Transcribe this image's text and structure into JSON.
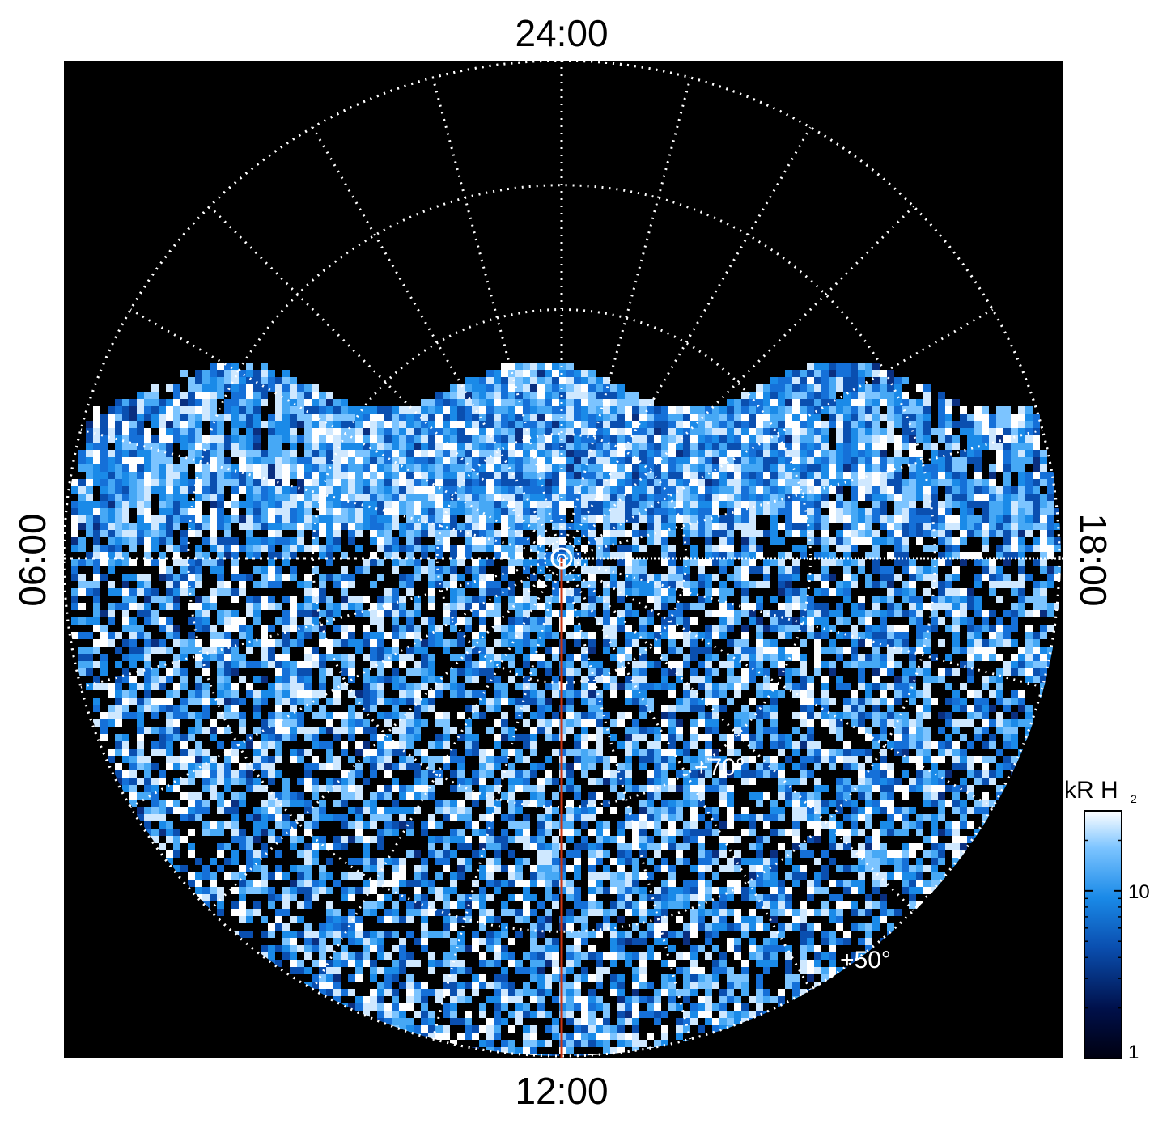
{
  "labels": {
    "top": "24:00",
    "bottom": "12:00",
    "left": "06:00",
    "right": "18:00"
  },
  "latitude_labels": {
    "inner": "+70°",
    "outer": "+50°"
  },
  "colorbar": {
    "title": "kR H",
    "title_subscript": "2",
    "ticks": [
      {
        "value": 1,
        "label": "1"
      },
      {
        "value": 10,
        "label": "10"
      }
    ],
    "min": 1,
    "max": 30,
    "scale": "log"
  },
  "projection": {
    "latitude_circles_deg": [
      80,
      70,
      60,
      50
    ],
    "local_time_spokes_h": 24,
    "pole_marker": "circle",
    "meridian_line_local_time": "12:00"
  },
  "colors": {
    "background": "#000000",
    "grid": "#ffffff",
    "meridian_line": "#cc3311",
    "colormap_low": "#000018",
    "colormap_mid": "#1a7fe6",
    "colormap_high": "#ffffff"
  }
}
